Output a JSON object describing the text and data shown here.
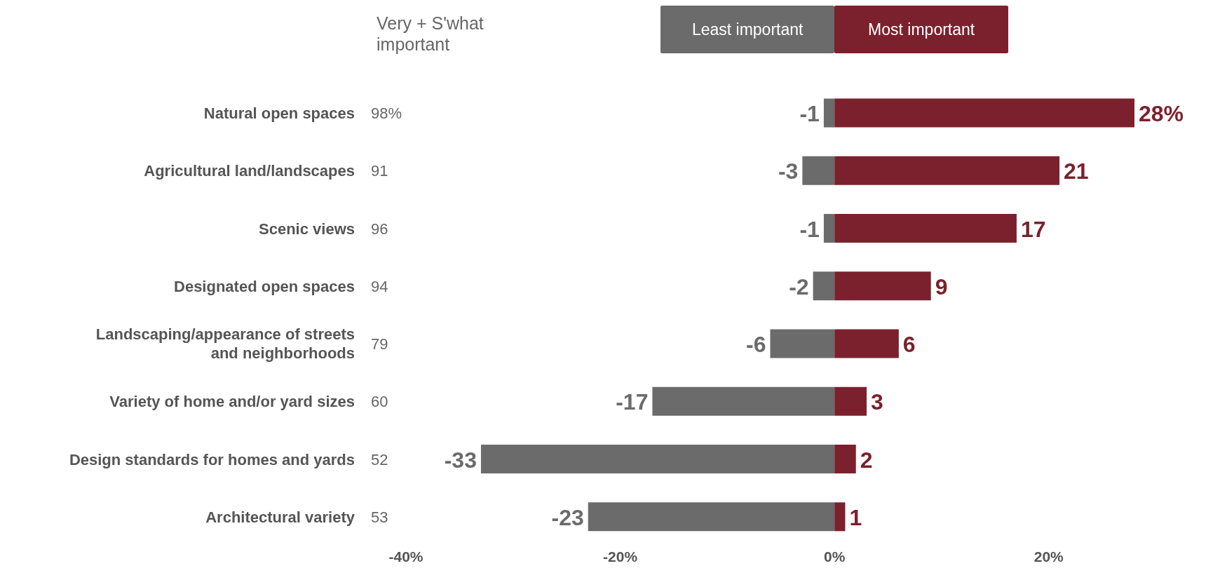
{
  "chart_data": {
    "type": "bar",
    "orientation": "horizontal",
    "stacked": true,
    "categories": [
      "Natural open spaces",
      "Agricultural land/landscapes",
      "Scenic views",
      "Designated open spaces",
      "Landscaping/appearance of streets and neighborhoods",
      "Variety of home and/or yard sizes",
      "Design standards for homes and yards",
      "Architectural variety"
    ],
    "series": [
      {
        "name": "Least important",
        "color": "#6b6b6b",
        "values": [
          -1,
          -3,
          -1,
          -2,
          -6,
          -17,
          -33,
          -23
        ],
        "value_labels": [
          "-1",
          "-3",
          "-1",
          "-2",
          "-6",
          "-17",
          "-33",
          "-23"
        ]
      },
      {
        "name": "Most important",
        "color": "#7b212d",
        "values": [
          28,
          21,
          17,
          9,
          6,
          3,
          2,
          1
        ],
        "value_labels": [
          "28%",
          "21",
          "17",
          "9",
          "6",
          "3",
          "2",
          "1"
        ]
      }
    ],
    "xticks": [
      {
        "value": -40,
        "label": "-40%"
      },
      {
        "value": -20,
        "label": "-20%"
      },
      {
        "value": 0,
        "label": "0%"
      },
      {
        "value": 20,
        "label": "20%"
      }
    ],
    "xlim": [
      -40,
      28
    ],
    "legend": "top",
    "grid": false,
    "annotations": [
      "Very + S'what important",
      "98%",
      "91",
      "96",
      "94",
      "79",
      "60",
      "52",
      "53"
    ]
  }
}
